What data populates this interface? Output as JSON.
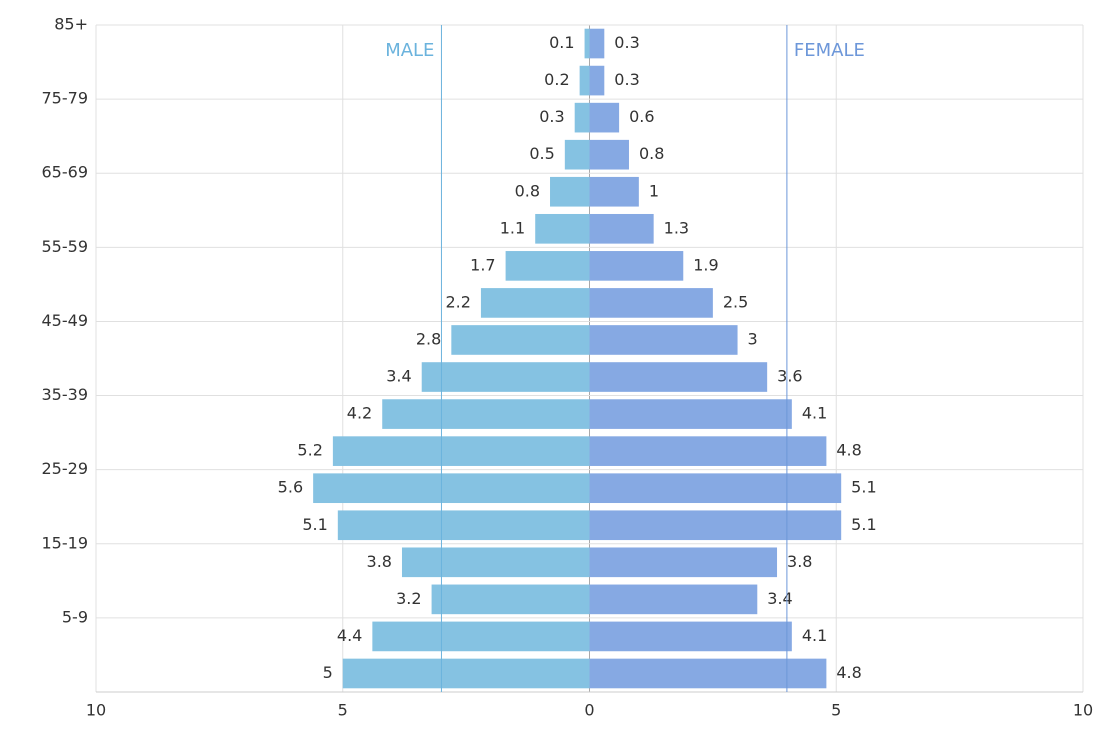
{
  "chart_data": {
    "type": "pyramid",
    "categories": [
      "85+",
      null,
      "75-79",
      null,
      "65-69",
      null,
      "55-59",
      null,
      "45-49",
      null,
      "35-39",
      null,
      "25-29",
      null,
      "15-19",
      null,
      "5-9",
      null
    ],
    "series": [
      {
        "name": "MALE",
        "side": "left",
        "color": "#85c2e2",
        "label_color": "#6bb3dd",
        "reference": -3,
        "values": [
          0.1,
          0.2,
          0.3,
          0.5,
          0.8,
          1.1,
          1.7,
          2.2,
          2.8,
          3.4,
          4.2,
          5.2,
          5.6,
          5.1,
          3.8,
          3.2,
          4.4,
          5
        ]
      },
      {
        "name": "FEMALE",
        "side": "right",
        "color": "#86a9e3",
        "label_color": "#6d97d9",
        "reference": 4,
        "values": [
          0.3,
          0.3,
          0.6,
          0.8,
          1,
          1.3,
          1.9,
          2.5,
          3,
          3.6,
          4.1,
          4.8,
          5.1,
          5.1,
          3.8,
          3.4,
          4.1,
          4.8
        ]
      }
    ],
    "xlim": [
      -10,
      10
    ],
    "xticks": [
      {
        "value": -10,
        "label": "10"
      },
      {
        "value": -5,
        "label": "5"
      },
      0,
      5,
      10
    ],
    "grid": true
  }
}
